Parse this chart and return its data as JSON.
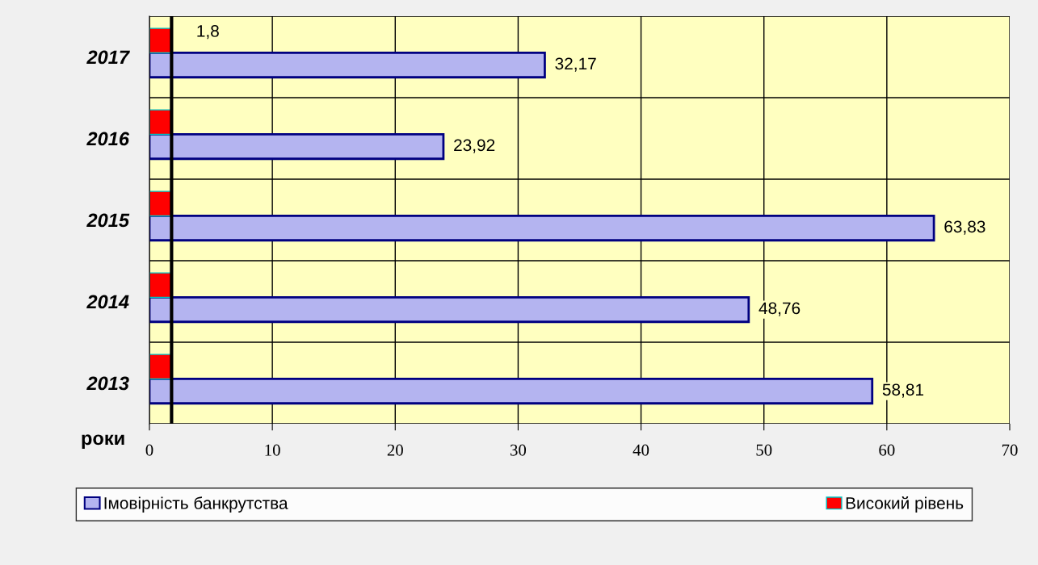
{
  "chart_data": {
    "type": "bar",
    "orientation": "horizontal",
    "ylabel": "роки",
    "categories": [
      "2017",
      "2016",
      "2015",
      "2014",
      "2013"
    ],
    "series": [
      {
        "name": "Імовірність банкрутства",
        "color": "#b4b4f0",
        "values": [
          32.17,
          23.92,
          63.83,
          48.76,
          58.81
        ],
        "value_labels": [
          "32,17",
          "23,92",
          "63,83",
          "48,76",
          "58,81"
        ]
      },
      {
        "name": "Високий рівень",
        "color": "#ff0000",
        "values": [
          1.8,
          1.8,
          1.8,
          1.8,
          1.8
        ],
        "value_labels": [
          "1,8",
          null,
          null,
          null,
          null
        ]
      }
    ],
    "xlim": [
      0,
      70
    ],
    "xticks": [
      0,
      10,
      20,
      30,
      40,
      50,
      60,
      70
    ],
    "ref_lines": [
      {
        "axis": "x",
        "value": 1.8,
        "color": "#000000"
      }
    ],
    "grid": true,
    "legend": "bottom"
  }
}
